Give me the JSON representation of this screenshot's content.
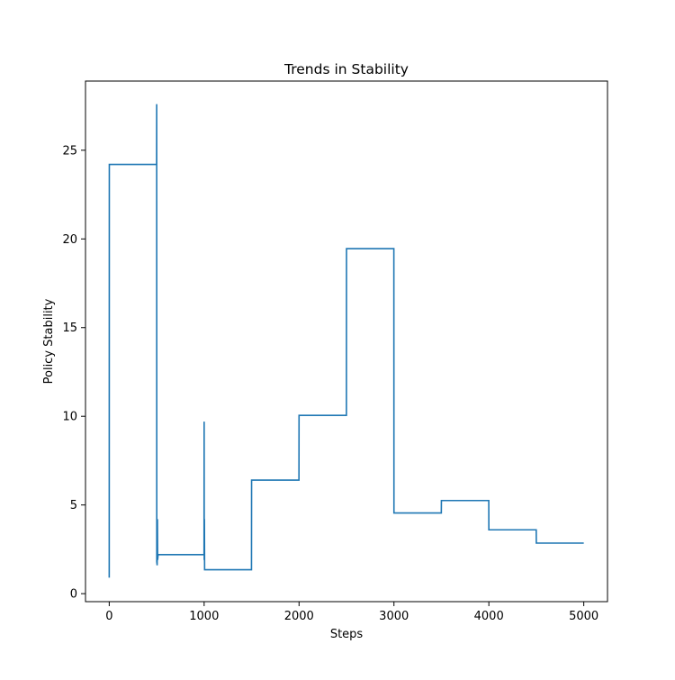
{
  "chart_data": {
    "type": "line",
    "title": "Trends in Stability",
    "xlabel": "Steps",
    "ylabel": "Policy Stability",
    "xlim": [
      -250,
      5250
    ],
    "ylim": [
      -0.45,
      28.9
    ],
    "xticks": [
      0,
      1000,
      2000,
      3000,
      4000,
      5000
    ],
    "yticks": [
      0,
      5,
      10,
      15,
      20,
      25
    ],
    "grid": false,
    "series_color": "#1f77b4",
    "series": [
      {
        "points": [
          [
            0,
            0.9
          ],
          [
            1,
            24.2
          ],
          [
            499,
            24.2
          ],
          [
            500,
            27.6
          ],
          [
            501,
            1.8
          ],
          [
            505,
            1.6
          ],
          [
            508,
            4.2
          ],
          [
            510,
            1.9
          ],
          [
            515,
            2.2
          ],
          [
            999,
            2.2
          ],
          [
            1000,
            9.7
          ],
          [
            1001,
            1.9
          ],
          [
            1003,
            4.2
          ],
          [
            1005,
            1.35
          ],
          [
            1499,
            1.35
          ],
          [
            1500,
            6.4
          ],
          [
            1999,
            6.4
          ],
          [
            2000,
            10.05
          ],
          [
            2499,
            10.05
          ],
          [
            2500,
            19.45
          ],
          [
            2999,
            19.45
          ],
          [
            3000,
            4.55
          ],
          [
            3499,
            4.55
          ],
          [
            3500,
            5.25
          ],
          [
            3999,
            5.25
          ],
          [
            4000,
            3.6
          ],
          [
            4499,
            3.6
          ],
          [
            4500,
            2.85
          ],
          [
            5000,
            2.85
          ]
        ]
      }
    ]
  }
}
